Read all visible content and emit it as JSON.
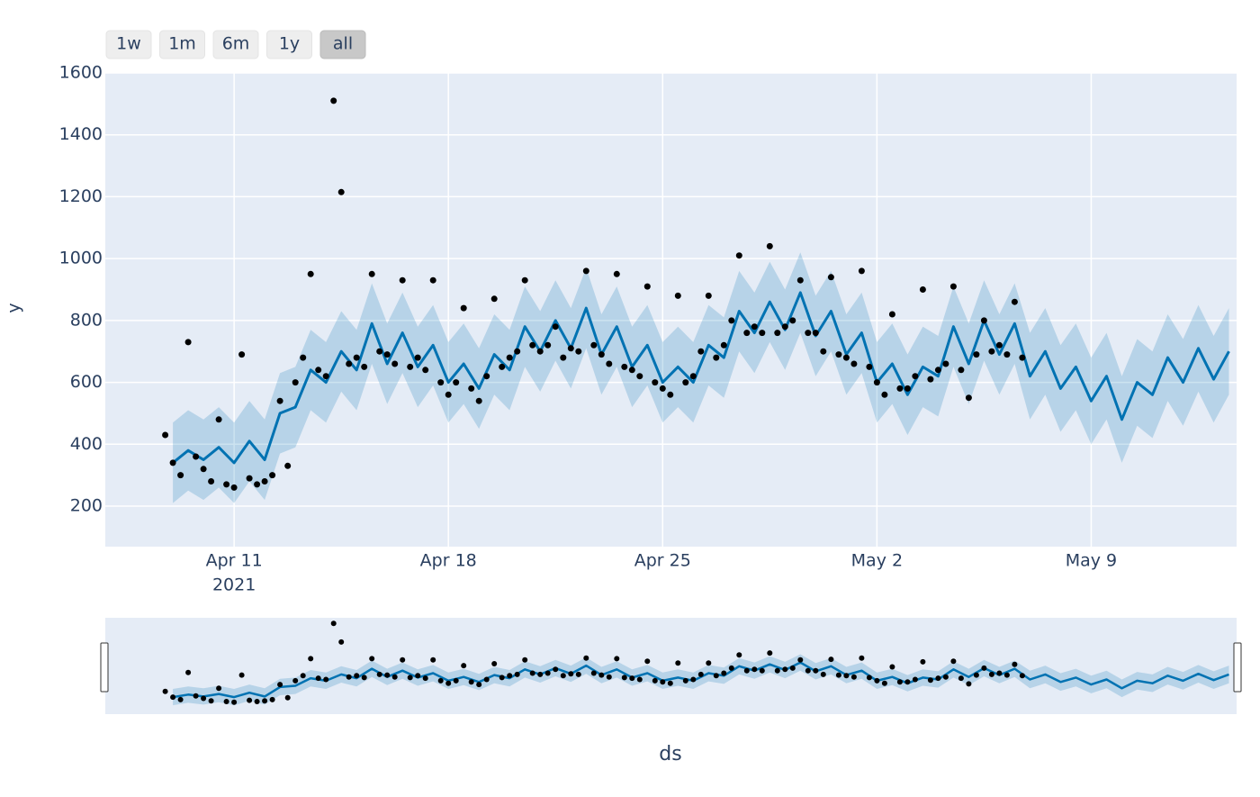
{
  "chart_data": {
    "type": "forecast",
    "x_label": "ds",
    "y_label": "y",
    "range_buttons": [
      "1w",
      "1m",
      "6m",
      "1y",
      "all"
    ],
    "range_active_index": 4,
    "xlim": [
      "2021-04-06T19:00",
      "2021-05-13T18:00"
    ],
    "ylim": [
      69,
      1600
    ],
    "xticks": [
      {
        "value": "2021-04-11T00:00",
        "label": "Apr 11"
      },
      {
        "value": "2021-04-18T00:00",
        "label": "Apr 18"
      },
      {
        "value": "2021-04-25T00:00",
        "label": "Apr 25"
      },
      {
        "value": "2021-05-02T00:00",
        "label": "May 2"
      },
      {
        "value": "2021-05-09T00:00",
        "label": "May 9"
      }
    ],
    "x_tick_sublabel": "2021",
    "yticks": [
      200,
      400,
      600,
      800,
      1000,
      1200,
      1400,
      1600
    ],
    "grid": true,
    "background": "#e5ecf6",
    "observed": {
      "color": "#000000",
      "x": [
        "2021-04-08T18:00",
        "2021-04-09T00:00",
        "2021-04-09T06:00",
        "2021-04-09T12:00",
        "2021-04-09T18:00",
        "2021-04-10T00:00",
        "2021-04-10T06:00",
        "2021-04-10T12:00",
        "2021-04-10T18:00",
        "2021-04-11T00:00",
        "2021-04-11T06:00",
        "2021-04-11T12:00",
        "2021-04-11T18:00",
        "2021-04-12T00:00",
        "2021-04-12T06:00",
        "2021-04-12T12:00",
        "2021-04-12T18:00",
        "2021-04-13T00:00",
        "2021-04-13T06:00",
        "2021-04-13T12:00",
        "2021-04-13T18:00",
        "2021-04-14T00:00",
        "2021-04-14T06:00",
        "2021-04-14T12:00",
        "2021-04-14T18:00",
        "2021-04-15T00:00",
        "2021-04-15T06:00",
        "2021-04-15T12:00",
        "2021-04-15T18:00",
        "2021-04-16T00:00",
        "2021-04-16T06:00",
        "2021-04-16T12:00",
        "2021-04-16T18:00",
        "2021-04-17T00:00",
        "2021-04-17T06:00",
        "2021-04-17T12:00",
        "2021-04-17T18:00",
        "2021-04-18T00:00",
        "2021-04-18T06:00",
        "2021-04-18T12:00",
        "2021-04-18T18:00",
        "2021-04-19T00:00",
        "2021-04-19T06:00",
        "2021-04-19T12:00",
        "2021-04-19T18:00",
        "2021-04-20T00:00",
        "2021-04-20T06:00",
        "2021-04-20T12:00",
        "2021-04-20T18:00",
        "2021-04-21T00:00",
        "2021-04-21T06:00",
        "2021-04-21T12:00",
        "2021-04-21T18:00",
        "2021-04-22T00:00",
        "2021-04-22T06:00",
        "2021-04-22T12:00",
        "2021-04-22T18:00",
        "2021-04-23T00:00",
        "2021-04-23T06:00",
        "2021-04-23T12:00",
        "2021-04-23T18:00",
        "2021-04-24T00:00",
        "2021-04-24T06:00",
        "2021-04-24T12:00",
        "2021-04-24T18:00",
        "2021-04-25T00:00",
        "2021-04-25T06:00",
        "2021-04-25T12:00",
        "2021-04-25T18:00",
        "2021-04-26T00:00",
        "2021-04-26T06:00",
        "2021-04-26T12:00",
        "2021-04-26T18:00",
        "2021-04-27T00:00",
        "2021-04-27T06:00",
        "2021-04-27T12:00",
        "2021-04-27T18:00",
        "2021-04-28T00:00",
        "2021-04-28T06:00",
        "2021-04-28T12:00",
        "2021-04-28T18:00",
        "2021-04-29T00:00",
        "2021-04-29T06:00",
        "2021-04-29T12:00",
        "2021-04-29T18:00",
        "2021-04-30T00:00",
        "2021-04-30T06:00",
        "2021-04-30T12:00",
        "2021-04-30T18:00",
        "2021-05-01T00:00",
        "2021-05-01T06:00",
        "2021-05-01T12:00",
        "2021-05-01T18:00",
        "2021-05-02T00:00",
        "2021-05-02T06:00",
        "2021-05-02T12:00",
        "2021-05-02T18:00",
        "2021-05-03T00:00",
        "2021-05-03T06:00",
        "2021-05-03T12:00",
        "2021-05-03T18:00",
        "2021-05-04T00:00",
        "2021-05-04T06:00",
        "2021-05-04T12:00",
        "2021-05-04T18:00",
        "2021-05-05T00:00",
        "2021-05-05T06:00",
        "2021-05-05T12:00",
        "2021-05-05T18:00",
        "2021-05-06T00:00",
        "2021-05-06T06:00",
        "2021-05-06T12:00",
        "2021-05-06T18:00"
      ],
      "values": [
        430,
        340,
        300,
        730,
        360,
        320,
        280,
        480,
        270,
        260,
        690,
        290,
        270,
        280,
        300,
        540,
        330,
        600,
        680,
        950,
        640,
        620,
        1510,
        1215,
        660,
        680,
        650,
        950,
        700,
        690,
        660,
        930,
        650,
        680,
        640,
        930,
        600,
        560,
        600,
        840,
        580,
        540,
        620,
        870,
        650,
        680,
        700,
        930,
        720,
        700,
        720,
        780,
        680,
        710,
        700,
        960,
        720,
        690,
        660,
        950,
        650,
        640,
        620,
        910,
        600,
        580,
        560,
        880,
        600,
        620,
        700,
        880,
        680,
        720,
        800,
        1010,
        760,
        780,
        760,
        1040,
        760,
        780,
        800,
        930,
        760,
        760,
        700,
        940,
        690,
        680,
        660,
        960,
        650,
        600,
        560,
        820,
        580,
        580,
        620,
        900,
        610,
        640,
        660,
        910,
        640,
        550,
        690,
        800,
        700,
        720,
        690,
        860,
        680
      ]
    },
    "forecast": {
      "color": "#0072b2",
      "band_color": "rgba(0,114,178,0.2)",
      "x": [
        "2021-04-09T00:00",
        "2021-04-09T12:00",
        "2021-04-10T00:00",
        "2021-04-10T12:00",
        "2021-04-11T00:00",
        "2021-04-11T12:00",
        "2021-04-12T00:00",
        "2021-04-12T12:00",
        "2021-04-13T00:00",
        "2021-04-13T12:00",
        "2021-04-14T00:00",
        "2021-04-14T12:00",
        "2021-04-15T00:00",
        "2021-04-15T12:00",
        "2021-04-16T00:00",
        "2021-04-16T12:00",
        "2021-04-17T00:00",
        "2021-04-17T12:00",
        "2021-04-18T00:00",
        "2021-04-18T12:00",
        "2021-04-19T00:00",
        "2021-04-19T12:00",
        "2021-04-20T00:00",
        "2021-04-20T12:00",
        "2021-04-21T00:00",
        "2021-04-21T12:00",
        "2021-04-22T00:00",
        "2021-04-22T12:00",
        "2021-04-23T00:00",
        "2021-04-23T12:00",
        "2021-04-24T00:00",
        "2021-04-24T12:00",
        "2021-04-25T00:00",
        "2021-04-25T12:00",
        "2021-04-26T00:00",
        "2021-04-26T12:00",
        "2021-04-27T00:00",
        "2021-04-27T12:00",
        "2021-04-28T00:00",
        "2021-04-28T12:00",
        "2021-04-29T00:00",
        "2021-04-29T12:00",
        "2021-04-30T00:00",
        "2021-04-30T12:00",
        "2021-05-01T00:00",
        "2021-05-01T12:00",
        "2021-05-02T00:00",
        "2021-05-02T12:00",
        "2021-05-03T00:00",
        "2021-05-03T12:00",
        "2021-05-04T00:00",
        "2021-05-04T12:00",
        "2021-05-05T00:00",
        "2021-05-05T12:00",
        "2021-05-06T00:00",
        "2021-05-06T12:00",
        "2021-05-07T00:00",
        "2021-05-07T12:00",
        "2021-05-08T00:00",
        "2021-05-08T12:00",
        "2021-05-09T00:00",
        "2021-05-09T12:00",
        "2021-05-10T00:00",
        "2021-05-10T12:00",
        "2021-05-11T00:00",
        "2021-05-11T12:00",
        "2021-05-12T00:00",
        "2021-05-12T12:00",
        "2021-05-13T00:00",
        "2021-05-13T12:00"
      ],
      "values": [
        340,
        380,
        350,
        390,
        340,
        410,
        350,
        500,
        520,
        640,
        600,
        700,
        640,
        790,
        660,
        760,
        650,
        720,
        600,
        660,
        580,
        690,
        640,
        780,
        700,
        800,
        710,
        840,
        690,
        780,
        650,
        720,
        600,
        650,
        600,
        720,
        680,
        830,
        760,
        860,
        770,
        890,
        750,
        830,
        690,
        760,
        600,
        660,
        560,
        650,
        620,
        780,
        660,
        800,
        690,
        790,
        620,
        700,
        580,
        650,
        540,
        620,
        480,
        600,
        560,
        680,
        600,
        710,
        610,
        700
      ],
      "lower": [
        210,
        250,
        220,
        260,
        210,
        280,
        220,
        370,
        390,
        510,
        470,
        570,
        510,
        660,
        530,
        630,
        520,
        590,
        470,
        530,
        450,
        560,
        510,
        650,
        570,
        670,
        580,
        710,
        560,
        650,
        520,
        590,
        470,
        520,
        470,
        590,
        550,
        700,
        630,
        730,
        640,
        760,
        620,
        700,
        560,
        630,
        470,
        530,
        430,
        520,
        490,
        650,
        530,
        670,
        560,
        660,
        480,
        560,
        440,
        510,
        400,
        480,
        340,
        460,
        420,
        540,
        460,
        570,
        470,
        560
      ],
      "upper": [
        470,
        510,
        480,
        520,
        470,
        540,
        480,
        630,
        650,
        770,
        730,
        830,
        770,
        920,
        790,
        890,
        780,
        850,
        730,
        790,
        710,
        820,
        770,
        910,
        830,
        930,
        840,
        970,
        820,
        910,
        780,
        850,
        730,
        780,
        730,
        850,
        810,
        960,
        890,
        990,
        900,
        1020,
        880,
        960,
        820,
        890,
        730,
        790,
        690,
        780,
        750,
        910,
        790,
        930,
        820,
        920,
        760,
        840,
        720,
        790,
        680,
        760,
        620,
        740,
        700,
        820,
        740,
        850,
        750,
        840
      ]
    }
  }
}
